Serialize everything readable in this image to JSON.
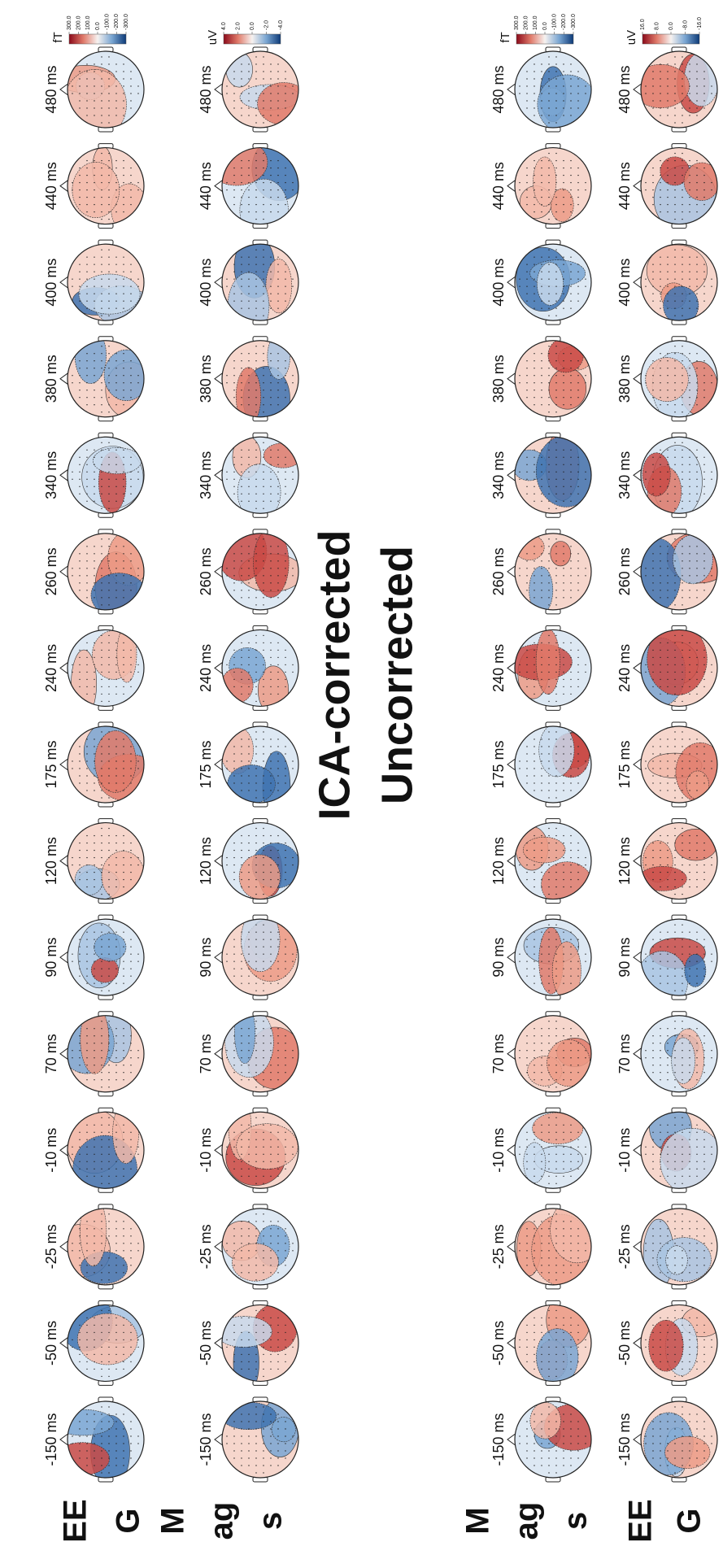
{
  "panels": [
    {
      "title": "Uncorrected",
      "rows": [
        {
          "label_lines": [
            "EE",
            "G"
          ],
          "unit": "uV",
          "colorbar_ticks": [
            "16.0",
            "8.0",
            "0.0",
            "-8.0",
            "-16.0"
          ]
        },
        {
          "label_lines": [
            "M",
            "ag",
            "s"
          ],
          "unit": "fT",
          "colorbar_ticks": [
            "300.0",
            "200.0",
            "100.0",
            "0.0",
            "-100.0",
            "-200.0",
            "-300.0"
          ]
        }
      ]
    },
    {
      "title": "ICA-corrected",
      "rows": [
        {
          "label_lines": [
            "EE",
            "G"
          ],
          "unit": "uV",
          "colorbar_ticks": [
            "4.0",
            "2.0",
            "0.0",
            "-2.0",
            "-4.0"
          ]
        },
        {
          "label_lines": [
            "M",
            "ag",
            "s"
          ],
          "unit": "fT",
          "colorbar_ticks": [
            "300.0",
            "200.0",
            "100.0",
            "0.0",
            "-100.0",
            "-200.0",
            "-300.0"
          ]
        }
      ]
    }
  ],
  "times": [
    "-150 ms",
    "-50 ms",
    "-25 ms",
    "-10 ms",
    "70 ms",
    "90 ms",
    "120 ms",
    "175 ms",
    "240 ms",
    "260 ms",
    "340 ms",
    "380 ms",
    "400 ms",
    "440 ms",
    "480 ms"
  ]
}
